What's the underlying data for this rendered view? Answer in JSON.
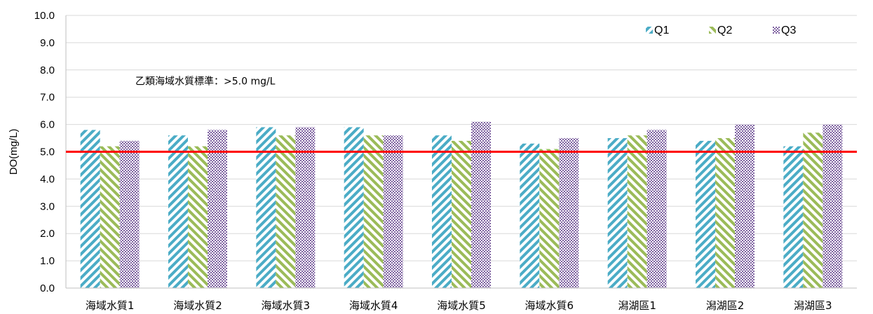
{
  "chart_data": {
    "type": "bar",
    "title": "",
    "xlabel": "",
    "ylabel": "DO(mg/L)",
    "ylim": [
      0,
      10
    ],
    "ytick_step": 1,
    "categories": [
      "海域水質1",
      "海域水質2",
      "海域水質3",
      "海域水質4",
      "海域水質5",
      "海域水質6",
      "潟湖區1",
      "潟湖區2",
      "潟湖區3"
    ],
    "series": [
      {
        "name": "Q1",
        "color": "#4bacc6",
        "pattern": "diagonal-down",
        "values": [
          5.8,
          5.6,
          5.9,
          5.9,
          5.6,
          5.3,
          5.5,
          5.4,
          5.2
        ]
      },
      {
        "name": "Q2",
        "color": "#9bbb59",
        "pattern": "diagonal-up",
        "values": [
          5.2,
          5.2,
          5.6,
          5.6,
          5.4,
          5.1,
          5.6,
          5.5,
          5.7
        ]
      },
      {
        "name": "Q3",
        "color": "#8064a2",
        "pattern": "checker",
        "values": [
          5.4,
          5.8,
          5.9,
          5.6,
          6.1,
          5.5,
          5.8,
          6.0,
          6.0
        ]
      }
    ],
    "reference_line": {
      "value": 5.0,
      "color": "#ff0000"
    },
    "annotation": "乙類海域水質標準：>5.0 mg/L",
    "grid": true,
    "legend_position": "top-right"
  }
}
